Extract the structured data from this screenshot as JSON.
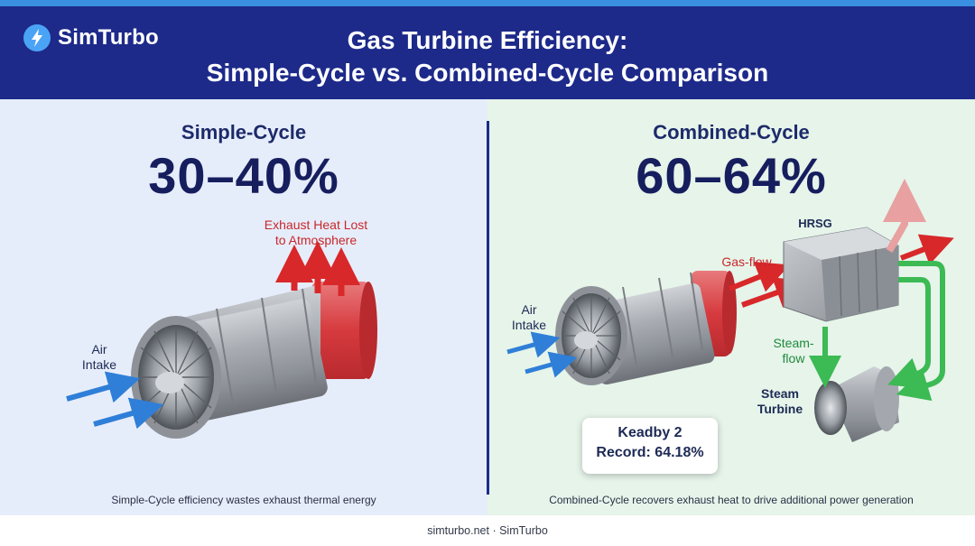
{
  "brand": {
    "name": "SimTurbo",
    "logo_icon": "lightning-bolt-icon",
    "logo_color": "#4aa3f5"
  },
  "header": {
    "title_line1": "Gas Turbine Efficiency:",
    "title_line2": "Simple-Cycle vs. Combined-Cycle Comparison",
    "bg_color": "#1d2a8a"
  },
  "simple_cycle": {
    "title": "Simple-Cycle",
    "efficiency": "30–40%",
    "exhaust_label_line1": "Exhaust Heat Lost",
    "exhaust_label_line2": "to Atmosphere",
    "air_label_line1": "Air",
    "air_label_line2": "Intake",
    "caption": "Simple-Cycle efficiency wastes exhaust thermal energy",
    "bg_color": "#e6edfa"
  },
  "combined_cycle": {
    "title": "Combined-Cycle",
    "efficiency": "60–64%",
    "air_label_line1": "Air",
    "air_label_line2": "Intake",
    "gas_flow_label": "Gas-flow",
    "hrsg_label": "HRSG",
    "steam_flow_line1": "Steam-",
    "steam_flow_line2": "flow",
    "steam_turbine_line1": "Steam",
    "steam_turbine_line2": "Turbine",
    "record_line1": "Keadby 2",
    "record_line2": "Record: 64.18%",
    "caption": "Combined-Cycle recovers exhaust heat to drive additional power generation",
    "bg_color": "#e6f4ea"
  },
  "colors": {
    "heat_red": "#d8282a",
    "air_blue": "#2f7fd8",
    "steam_green": "#3cba54",
    "navy": "#1d2a6a"
  },
  "footer": {
    "text": "simturbo.net · SimTurbo"
  }
}
